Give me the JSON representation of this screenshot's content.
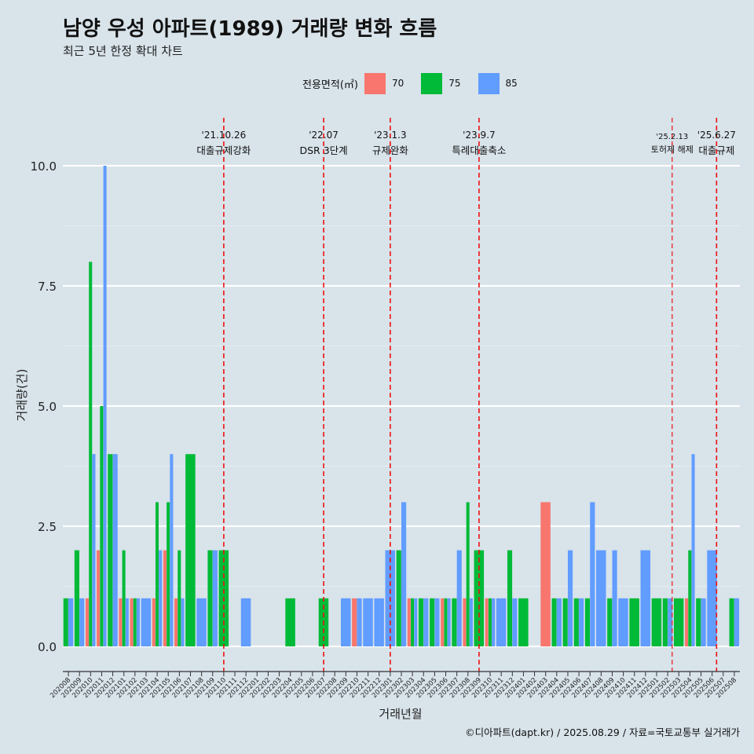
{
  "title": "남양 우성 아파트(1989) 거래량 변화 흐름",
  "subtitle": "최근 5년 한정 확대 차트",
  "caption": "©디아파트(dapt.kr) / 2025.08.29 / 자료=국토교통부 실거래가",
  "legend": {
    "title": "전용면적(㎡)",
    "items": [
      {
        "label": "70",
        "color": "#f8766d"
      },
      {
        "label": "75",
        "color": "#00ba38"
      },
      {
        "label": "85",
        "color": "#619cff"
      }
    ]
  },
  "chart_data": {
    "type": "bar",
    "xlabel": "거래년월",
    "ylabel": "거래량(건)",
    "ylim": [
      0,
      10
    ],
    "yticks": [
      "0.0",
      "2.5",
      "5.0",
      "7.5",
      "10.0"
    ],
    "grid": true,
    "legend_position": "top",
    "series_names": [
      "70",
      "75",
      "85"
    ],
    "colors": [
      "#f8766d",
      "#00ba38",
      "#619cff"
    ],
    "categories": [
      "202008",
      "202009",
      "202010",
      "202011",
      "202012",
      "202101",
      "202102",
      "202103",
      "202104",
      "202105",
      "202106",
      "202107",
      "202108",
      "202109",
      "202110",
      "202111",
      "202112",
      "202201",
      "202202",
      "202203",
      "202204",
      "202205",
      "202206",
      "202207",
      "202208",
      "202209",
      "202210",
      "202211",
      "202212",
      "202301",
      "202302",
      "202303",
      "202304",
      "202305",
      "202306",
      "202307",
      "202308",
      "202309",
      "202310",
      "202311",
      "202312",
      "202401",
      "202402",
      "202403",
      "202404",
      "202405",
      "202406",
      "202407",
      "202408",
      "202409",
      "202410",
      "202411",
      "202412",
      "202501",
      "202502",
      "202503",
      "202504",
      "202505",
      "202506",
      "202507",
      "202508"
    ],
    "values": [
      [
        0,
        1,
        1
      ],
      [
        0,
        2,
        1
      ],
      [
        1,
        8,
        4
      ],
      [
        2,
        5,
        10
      ],
      [
        0,
        4,
        4
      ],
      [
        1,
        2,
        1
      ],
      [
        1,
        1,
        1
      ],
      [
        0,
        0,
        1
      ],
      [
        1,
        3,
        2
      ],
      [
        2,
        3,
        4
      ],
      [
        1,
        2,
        1
      ],
      [
        0,
        4,
        0
      ],
      [
        0,
        0,
        1
      ],
      [
        0,
        2,
        2
      ],
      [
        0,
        2,
        0
      ],
      [
        0,
        0,
        0
      ],
      [
        0,
        0,
        1
      ],
      [
        0,
        0,
        0
      ],
      [
        0,
        0,
        0
      ],
      [
        0,
        0,
        0
      ],
      [
        0,
        1,
        0
      ],
      [
        0,
        0,
        0
      ],
      [
        0,
        0,
        0
      ],
      [
        0,
        1,
        0
      ],
      [
        0,
        0,
        0
      ],
      [
        0,
        0,
        1
      ],
      [
        1,
        0,
        1
      ],
      [
        0,
        0,
        1
      ],
      [
        0,
        0,
        1
      ],
      [
        0,
        0,
        2
      ],
      [
        0,
        2,
        3
      ],
      [
        1,
        1,
        1
      ],
      [
        0,
        1,
        1
      ],
      [
        0,
        1,
        1
      ],
      [
        1,
        1,
        1
      ],
      [
        0,
        1,
        2
      ],
      [
        1,
        3,
        1
      ],
      [
        0,
        2,
        0
      ],
      [
        1,
        1,
        1
      ],
      [
        0,
        0,
        1
      ],
      [
        0,
        2,
        1
      ],
      [
        0,
        1,
        0
      ],
      [
        0,
        0,
        0
      ],
      [
        3,
        0,
        0
      ],
      [
        0,
        1,
        1
      ],
      [
        0,
        1,
        2
      ],
      [
        0,
        1,
        1
      ],
      [
        0,
        1,
        3
      ],
      [
        0,
        0,
        2
      ],
      [
        0,
        1,
        2
      ],
      [
        0,
        0,
        1
      ],
      [
        0,
        1,
        0
      ],
      [
        0,
        0,
        2
      ],
      [
        0,
        1,
        0
      ],
      [
        0,
        1,
        1
      ],
      [
        0,
        1,
        0
      ],
      [
        1,
        2,
        4
      ],
      [
        0,
        1,
        1
      ],
      [
        0,
        0,
        2
      ],
      [
        0,
        0,
        0
      ],
      [
        0,
        1,
        1
      ]
    ],
    "annotations": [
      {
        "date": "'21.10.26",
        "label": "대출규제강화",
        "at": 14.0,
        "style": "bold"
      },
      {
        "date": "'22.07",
        "label": "DSR 3단계",
        "at": 23.0,
        "style": "bold"
      },
      {
        "date": "'23.1.3",
        "label": "규제완화",
        "at": 29.0,
        "style": "bold"
      },
      {
        "date": "'23.9.7",
        "label": "특례대출축소",
        "at": 37.0,
        "style": "bold"
      },
      {
        "date": "'25.2.13",
        "label": "토허제 해제",
        "at": 54.4,
        "style": "light"
      },
      {
        "date": "'25.6.27",
        "label": "대출규제",
        "at": 58.4,
        "style": "bold"
      }
    ]
  }
}
